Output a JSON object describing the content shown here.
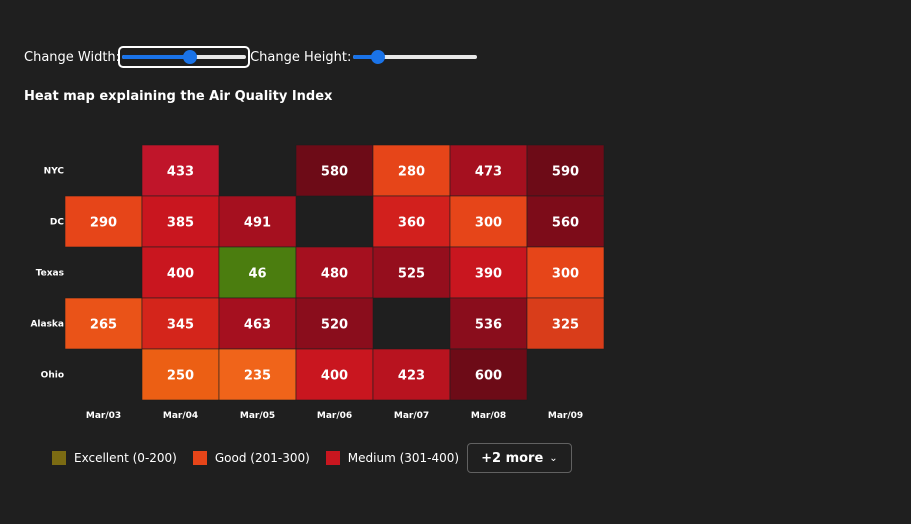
{
  "controls": {
    "width_label": "Change Width:",
    "height_label": "Change Height:",
    "width_slider_value": 0.55,
    "height_slider_value": 0.2
  },
  "chart_data": {
    "type": "heatmap",
    "title": "Heat map explaining the Air Quality Index",
    "x_categories": [
      "Mar/03",
      "Mar/04",
      "Mar/05",
      "Mar/06",
      "Mar/07",
      "Mar/08",
      "Mar/09"
    ],
    "y_categories": [
      "NYC",
      "DC",
      "Texas",
      "Alaska",
      "Ohio"
    ],
    "values": [
      [
        null,
        433,
        null,
        580,
        280,
        473,
        590
      ],
      [
        290,
        385,
        491,
        null,
        360,
        300,
        560
      ],
      [
        null,
        400,
        46,
        480,
        525,
        390,
        300
      ],
      [
        265,
        345,
        463,
        520,
        null,
        536,
        325
      ],
      [
        null,
        250,
        235,
        400,
        423,
        600,
        null
      ]
    ],
    "cell_colors": [
      [
        null,
        "#c0152a",
        null,
        "#6d0b17",
        "#e64519",
        "#a5101f",
        "#6d0b17"
      ],
      [
        null,
        "#c9161f",
        "#a5101f",
        null,
        "#d2201d",
        "#e64519",
        "#7d0c19"
      ],
      [
        null,
        "#c9161f",
        "#4b7d0f",
        "#a5101f",
        "#950e1d",
        "#c9161f",
        "#e64519"
      ],
      [
        null,
        "#d4251b",
        "#a5101f",
        "#8a0d1c",
        null,
        "#8a0d1c",
        "#d93d1a"
      ],
      [
        null,
        "#ec5f14",
        "#f0641a",
        "#c9161f",
        "#b8131f",
        "#6d0b17",
        null
      ]
    ],
    "dc_290_color": "#e64519",
    "alaska_265_color": "#ea5318",
    "legend": [
      {
        "label": "Excellent (0-200)",
        "color": "#7b6b13"
      },
      {
        "label": "Good (201-300)",
        "color": "#e64519"
      },
      {
        "label": "Medium (301-400)",
        "color": "#c9161f"
      }
    ],
    "legend_overflow": "+2 more"
  }
}
